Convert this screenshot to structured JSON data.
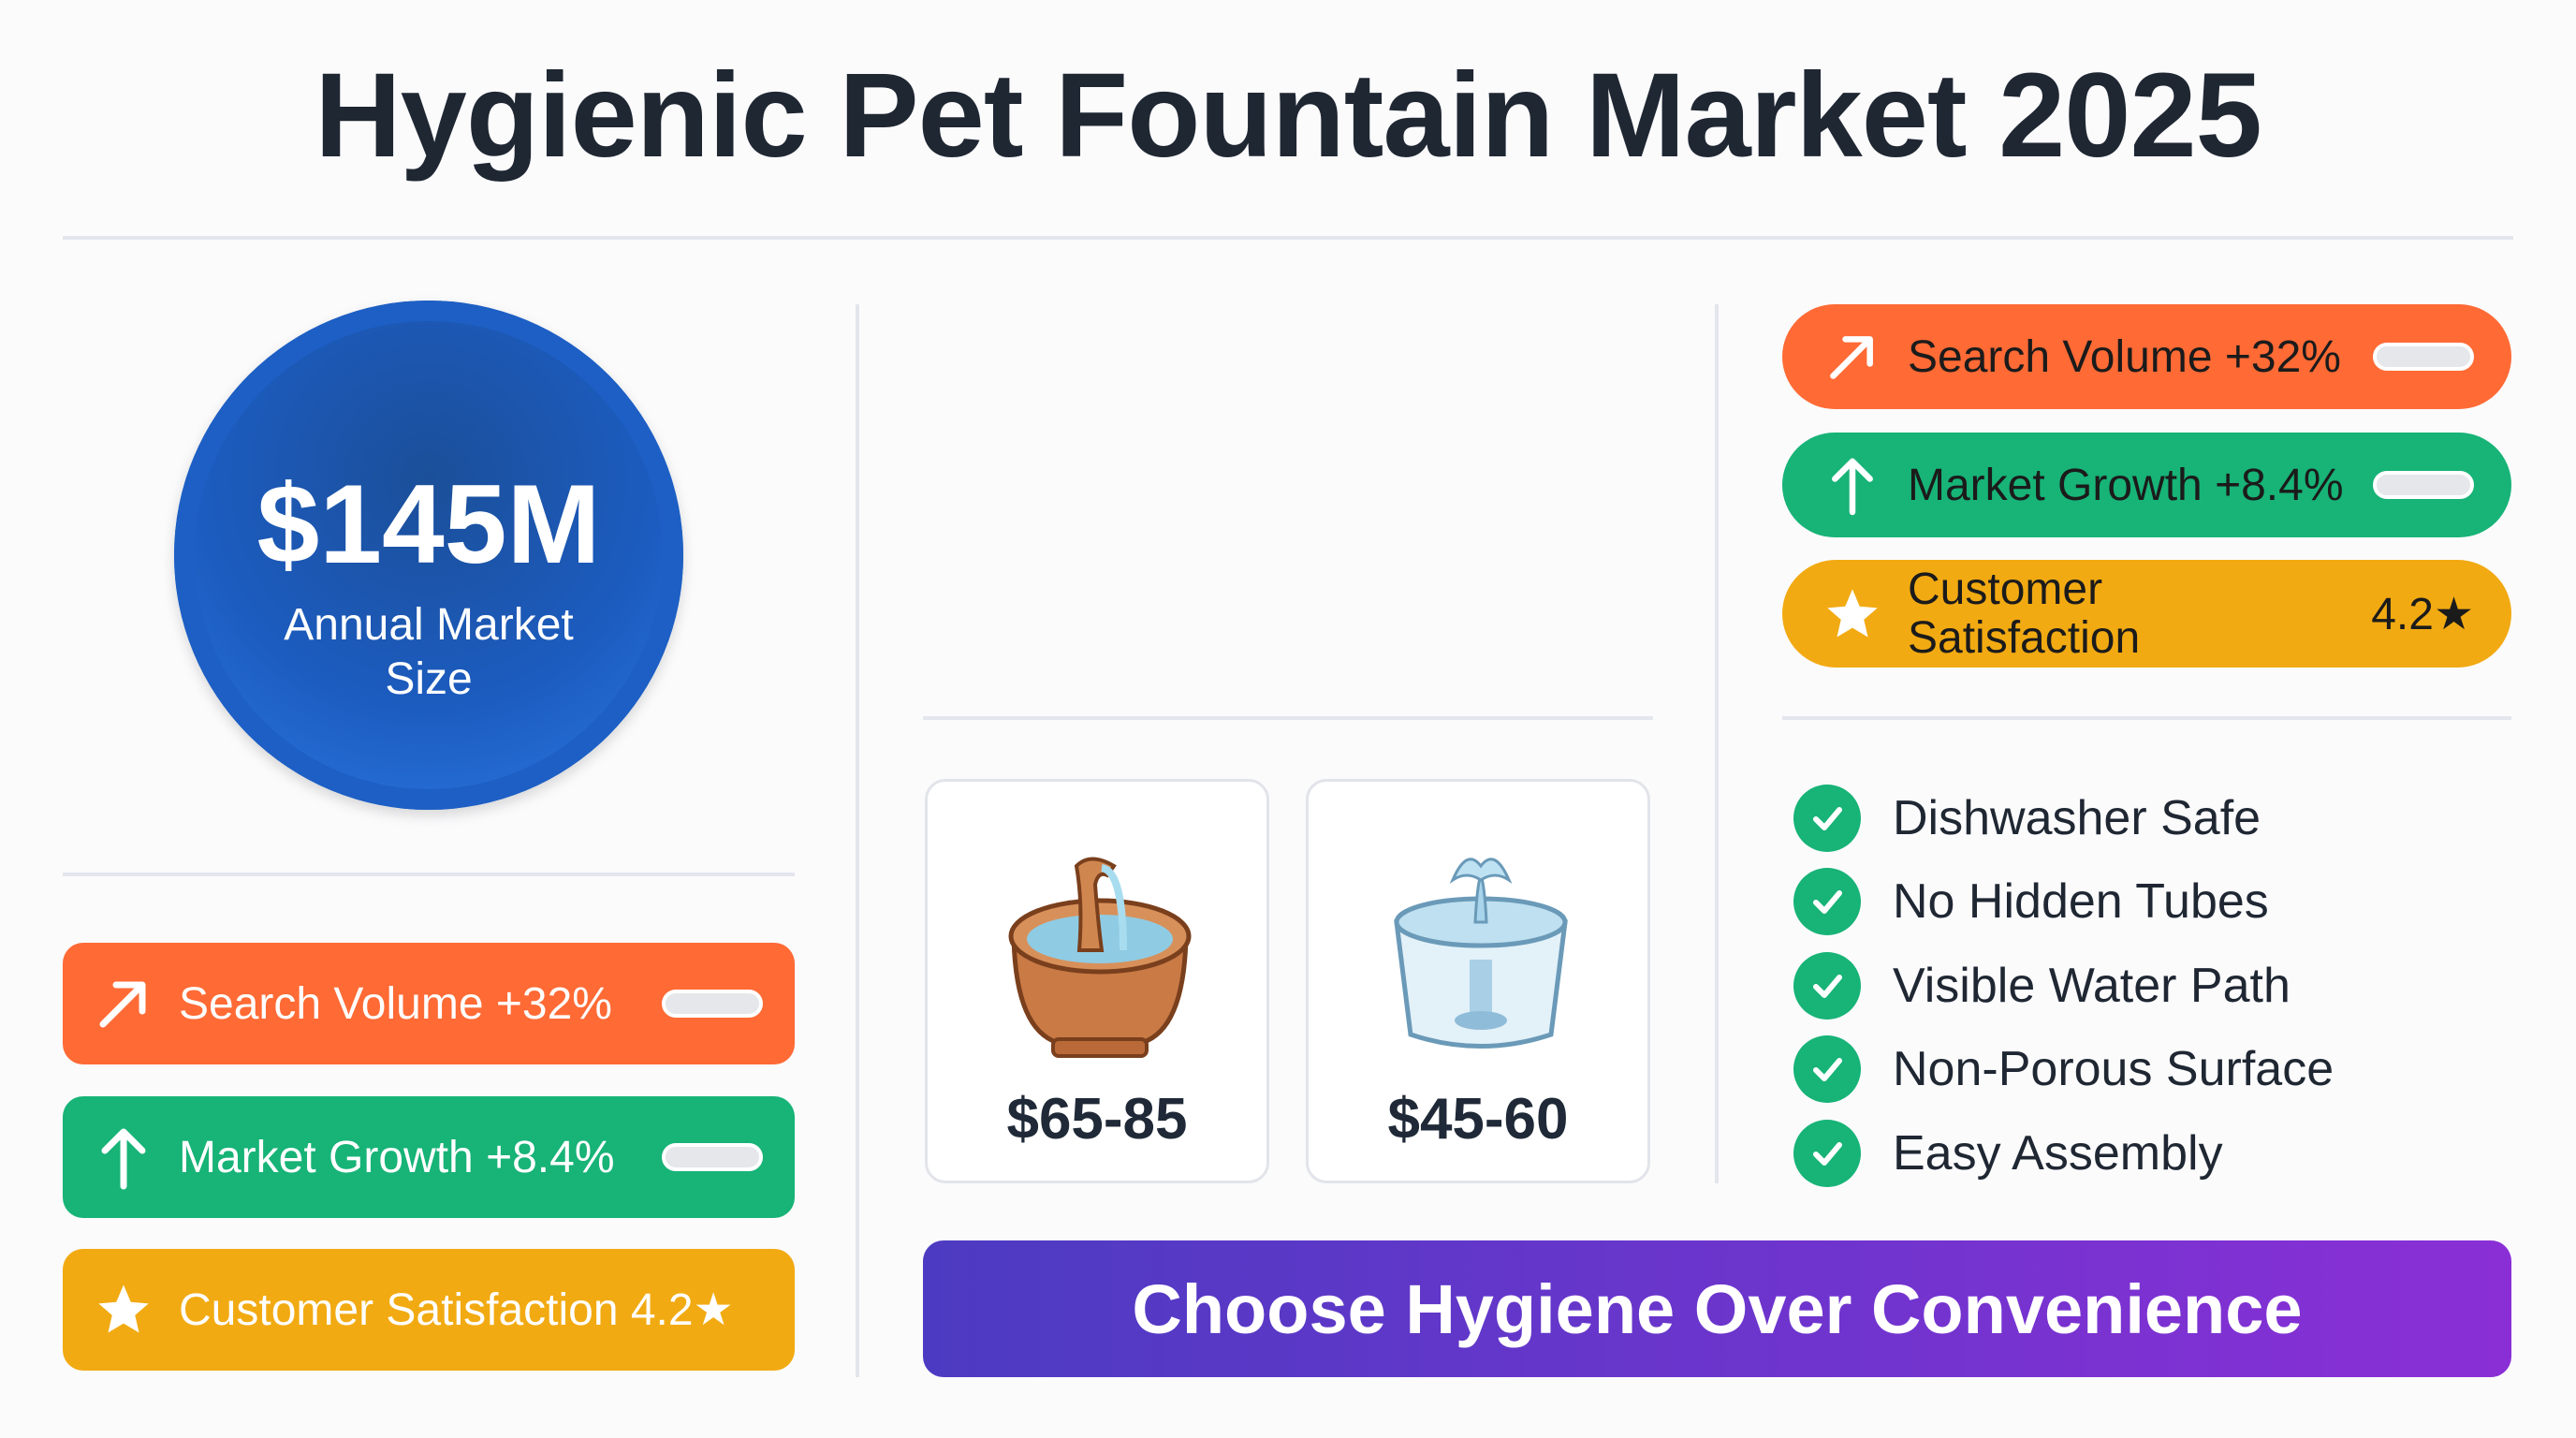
{
  "title": "Hygienic Pet Fountain Market 2025",
  "market": {
    "value": "$145M",
    "label": "Annual Market Size"
  },
  "left_stats": [
    {
      "label": "Search Volume +32%",
      "icon": "trend-up-arrow-icon",
      "color": "#ff6a35",
      "toggle": true
    },
    {
      "label": "Market Growth +8.4%",
      "icon": "arrow-up-icon",
      "color": "#17b377",
      "toggle": true
    },
    {
      "label": "Customer Satisfaction 4.2★",
      "icon": "star-icon",
      "color": "#f2aa12",
      "toggle": false
    }
  ],
  "right_stats": [
    {
      "label": "Search Volume +32%",
      "icon": "trend-up-arrow-icon",
      "color": "#ff6a35"
    },
    {
      "label": "Market Growth +8.4%",
      "icon": "arrow-up-icon",
      "color": "#17b377"
    },
    {
      "label": "Customer Satisfaction",
      "value": "4.2★",
      "icon": "star-icon",
      "color": "#f2aa12"
    }
  ],
  "products": [
    {
      "price": "$65-85",
      "icon": "ceramic-fountain-icon"
    },
    {
      "price": "$45-60",
      "icon": "plastic-fountain-icon"
    }
  ],
  "features": [
    "Dishwasher Safe",
    "No Hidden Tubes",
    "Visible Water Path",
    "Non-Porous Surface",
    "Easy Assembly"
  ],
  "cta": "Choose Hygiene Over Convenience"
}
